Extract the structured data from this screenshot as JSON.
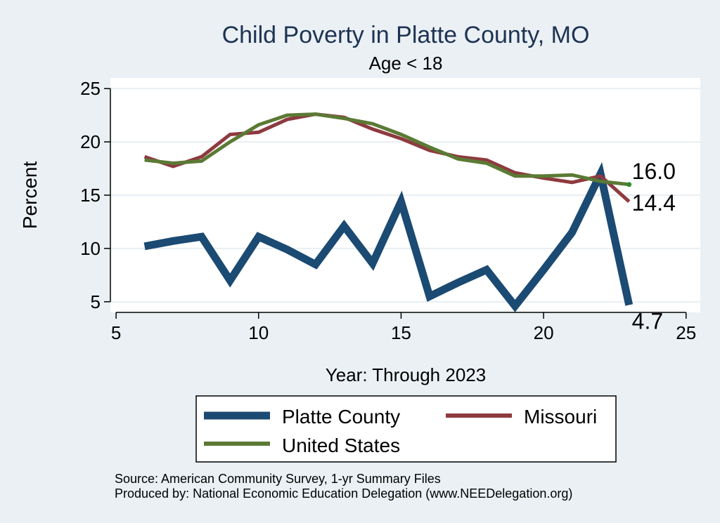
{
  "chart_data": {
    "type": "line",
    "title": "Child Poverty in Platte County, MO",
    "subtitle": "Age < 18",
    "xlabel": "Year: Through 2023",
    "ylabel": "Percent",
    "xlim": [
      4.8,
      25.5
    ],
    "ylim": [
      4.0,
      26.0
    ],
    "xticks": [
      5,
      10,
      15,
      20,
      25
    ],
    "yticks": [
      5,
      10,
      15,
      20,
      25
    ],
    "grid": true,
    "legend_position": "bottom",
    "x": [
      6,
      7,
      8,
      9,
      10,
      11,
      12,
      13,
      14,
      15,
      16,
      17,
      18,
      19,
      20,
      21,
      22,
      23
    ],
    "series": [
      {
        "name": "Platte County",
        "color": "#1b4a73",
        "style": "thick",
        "values": [
          10.2,
          10.7,
          11.1,
          7.0,
          11.1,
          9.9,
          8.5,
          12.1,
          8.6,
          14.4,
          5.5,
          6.8,
          8.0,
          4.6,
          8.0,
          11.5,
          17.0,
          4.7
        ],
        "end_label": "4.7"
      },
      {
        "name": "Missouri",
        "color": "#8e3a3f",
        "style": "medium",
        "values": [
          18.6,
          17.7,
          18.6,
          20.7,
          20.9,
          22.1,
          22.6,
          22.3,
          21.2,
          20.3,
          19.2,
          18.6,
          18.3,
          17.1,
          16.6,
          16.2,
          16.8,
          14.4
        ],
        "end_label": "14.4"
      },
      {
        "name": "United States",
        "color": "#5b7a35",
        "style": "medium",
        "values": [
          18.3,
          18.0,
          18.2,
          20.0,
          21.6,
          22.5,
          22.6,
          22.2,
          21.7,
          20.7,
          19.5,
          18.4,
          18.0,
          16.8,
          16.8,
          16.9,
          16.3,
          16.0
        ],
        "end_label": "16.0"
      }
    ],
    "footer": [
      "Source: American Community Survey, 1-yr Summary Files",
      "Produced by: National Economic Education Delegation (www.NEEDelegation.org)"
    ]
  },
  "colors": {
    "background": "#eaf0f4",
    "plot_background": "#ffffff",
    "title": "#1e3354"
  }
}
